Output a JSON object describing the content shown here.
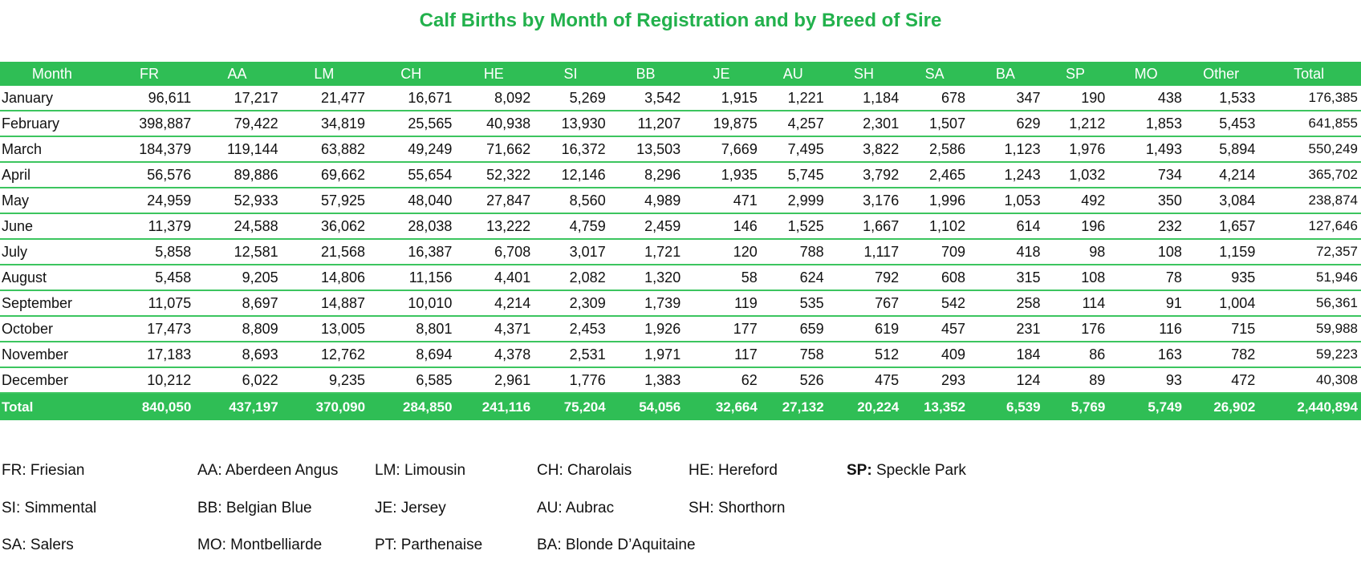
{
  "title": "Calf Births by Month of Registration and by Breed of Sire",
  "table": {
    "headers": [
      "Month",
      "FR",
      "AA",
      "LM",
      "CH",
      "HE",
      "SI",
      "BB",
      "JE",
      "AU",
      "SH",
      "SA",
      "BA",
      "SP",
      "MO",
      "Other",
      "Total"
    ],
    "rows": [
      [
        "January",
        "96,611",
        "17,217",
        "21,477",
        "16,671",
        "8,092",
        "5,269",
        "3,542",
        "1,915",
        "1,221",
        "1,184",
        "678",
        "347",
        "190",
        "438",
        "1,533",
        "176,385"
      ],
      [
        "February",
        "398,887",
        "79,422",
        "34,819",
        "25,565",
        "40,938",
        "13,930",
        "11,207",
        "19,875",
        "4,257",
        "2,301",
        "1,507",
        "629",
        "1,212",
        "1,853",
        "5,453",
        "641,855"
      ],
      [
        "March",
        "184,379",
        "119,144",
        "63,882",
        "49,249",
        "71,662",
        "16,372",
        "13,503",
        "7,669",
        "7,495",
        "3,822",
        "2,586",
        "1,123",
        "1,976",
        "1,493",
        "5,894",
        "550,249"
      ],
      [
        "April",
        "56,576",
        "89,886",
        "69,662",
        "55,654",
        "52,322",
        "12,146",
        "8,296",
        "1,935",
        "5,745",
        "3,792",
        "2,465",
        "1,243",
        "1,032",
        "734",
        "4,214",
        "365,702"
      ],
      [
        "May",
        "24,959",
        "52,933",
        "57,925",
        "48,040",
        "27,847",
        "8,560",
        "4,989",
        "471",
        "2,999",
        "3,176",
        "1,996",
        "1,053",
        "492",
        "350",
        "3,084",
        "238,874"
      ],
      [
        "June",
        "11,379",
        "24,588",
        "36,062",
        "28,038",
        "13,222",
        "4,759",
        "2,459",
        "146",
        "1,525",
        "1,667",
        "1,102",
        "614",
        "196",
        "232",
        "1,657",
        "127,646"
      ],
      [
        "July",
        "5,858",
        "12,581",
        "21,568",
        "16,387",
        "6,708",
        "3,017",
        "1,721",
        "120",
        "788",
        "1,117",
        "709",
        "418",
        "98",
        "108",
        "1,159",
        "72,357"
      ],
      [
        "August",
        "5,458",
        "9,205",
        "14,806",
        "11,156",
        "4,401",
        "2,082",
        "1,320",
        "58",
        "624",
        "792",
        "608",
        "315",
        "108",
        "78",
        "935",
        "51,946"
      ],
      [
        "September",
        "11,075",
        "8,697",
        "14,887",
        "10,010",
        "4,214",
        "2,309",
        "1,739",
        "119",
        "535",
        "767",
        "542",
        "258",
        "114",
        "91",
        "1,004",
        "56,361"
      ],
      [
        "October",
        "17,473",
        "8,809",
        "13,005",
        "8,801",
        "4,371",
        "2,453",
        "1,926",
        "177",
        "659",
        "619",
        "457",
        "231",
        "176",
        "116",
        "715",
        "59,988"
      ],
      [
        "November",
        "17,183",
        "8,693",
        "12,762",
        "8,694",
        "4,378",
        "2,531",
        "1,971",
        "117",
        "758",
        "512",
        "409",
        "184",
        "86",
        "163",
        "782",
        "59,223"
      ],
      [
        "December",
        "10,212",
        "6,022",
        "9,235",
        "6,585",
        "2,961",
        "1,776",
        "1,383",
        "62",
        "526",
        "475",
        "293",
        "124",
        "89",
        "93",
        "472",
        "40,308"
      ]
    ],
    "total_row": [
      "Total",
      "840,050",
      "437,197",
      "370,090",
      "284,850",
      "241,116",
      "75,204",
      "54,056",
      "32,664",
      "27,132",
      "20,224",
      "13,352",
      "6,539",
      "5,769",
      "5,749",
      "26,902",
      "2,440,894"
    ]
  },
  "legend": [
    {
      "code": "FR",
      "name": "Friesian"
    },
    {
      "code": "AA",
      "name": "Aberdeen Angus"
    },
    {
      "code": "LM",
      "name": "Limousin"
    },
    {
      "code": "CH",
      "name": "Charolais"
    },
    {
      "code": "HE",
      "name": "Hereford"
    },
    {
      "code": "SP:",
      "name": "Speckle Park"
    },
    {
      "code": "SI",
      "name": "Simmental"
    },
    {
      "code": "BB",
      "name": "Belgian Blue"
    },
    {
      "code": "JE",
      "name": "Jersey"
    },
    {
      "code": "AU",
      "name": "Aubrac"
    },
    {
      "code": "SH",
      "name": "Shorthorn"
    },
    {
      "code": "SA",
      "name": "Salers"
    },
    {
      "code": "MO",
      "name": "Montbelliarde"
    },
    {
      "code": "PT",
      "name": "Parthenaise"
    },
    {
      "code": "BA",
      "name": "Blonde D’Aquitaine"
    }
  ],
  "colors": {
    "accent": "#22b14c",
    "header_fill": "#2fbe55",
    "row_rule": "#3cc55f"
  }
}
